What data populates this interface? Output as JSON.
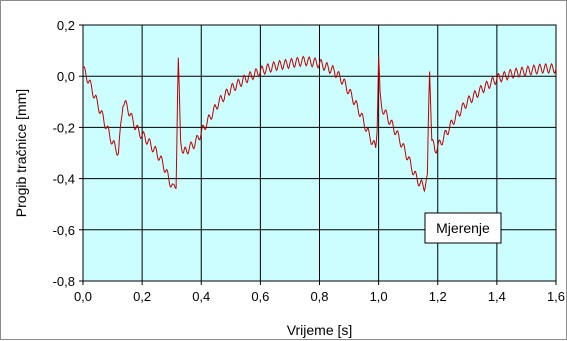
{
  "chart_data": {
    "type": "line",
    "title": "",
    "xlabel": "Vrijeme [s]",
    "ylabel": "Progib tračnice [mm]",
    "xlim": [
      0.0,
      1.6
    ],
    "ylim": [
      -0.8,
      0.2
    ],
    "x_ticks": [
      "0,0",
      "0,2",
      "0,4",
      "0,6",
      "0,8",
      "1,0",
      "1,2",
      "1,4",
      "1,6"
    ],
    "y_ticks": [
      "0,2",
      "0,0",
      "-0,2",
      "-0,4",
      "-0,6",
      "-0,8"
    ],
    "grid": true,
    "legend_placement": "bottom-right",
    "plot_background": "#ccfeff",
    "series": [
      {
        "name": "Mjerenje",
        "color": "#c00000",
        "x": [
          0.0,
          0.02,
          0.04,
          0.06,
          0.08,
          0.1,
          0.12,
          0.135,
          0.15,
          0.17,
          0.19,
          0.21,
          0.23,
          0.25,
          0.27,
          0.29,
          0.305,
          0.315,
          0.322,
          0.33,
          0.34,
          0.36,
          0.38,
          0.4,
          0.43,
          0.46,
          0.5,
          0.55,
          0.6,
          0.65,
          0.7,
          0.75,
          0.8,
          0.85,
          0.88,
          0.91,
          0.94,
          0.96,
          0.98,
          0.99,
          0.995,
          1.0,
          1.005,
          1.01,
          1.02,
          1.04,
          1.06,
          1.08,
          1.1,
          1.12,
          1.14,
          1.155,
          1.165,
          1.172,
          1.18,
          1.19,
          1.21,
          1.23,
          1.26,
          1.3,
          1.35,
          1.4,
          1.45,
          1.5,
          1.55,
          1.6
        ],
        "y": [
          0.03,
          -0.02,
          -0.08,
          -0.14,
          -0.2,
          -0.26,
          -0.3,
          -0.1,
          -0.12,
          -0.18,
          -0.22,
          -0.24,
          -0.27,
          -0.3,
          -0.34,
          -0.4,
          -0.44,
          -0.42,
          0.08,
          -0.25,
          -0.3,
          -0.28,
          -0.26,
          -0.22,
          -0.16,
          -0.1,
          -0.05,
          -0.01,
          0.02,
          0.04,
          0.05,
          0.06,
          0.05,
          0.02,
          -0.02,
          -0.08,
          -0.15,
          -0.21,
          -0.26,
          -0.28,
          -0.2,
          0.08,
          -0.08,
          -0.12,
          -0.14,
          -0.18,
          -0.22,
          -0.27,
          -0.32,
          -0.38,
          -0.42,
          -0.43,
          -0.4,
          0.05,
          -0.25,
          -0.29,
          -0.26,
          -0.22,
          -0.16,
          -0.1,
          -0.05,
          -0.01,
          0.01,
          0.02,
          0.03,
          0.03
        ]
      }
    ]
  }
}
